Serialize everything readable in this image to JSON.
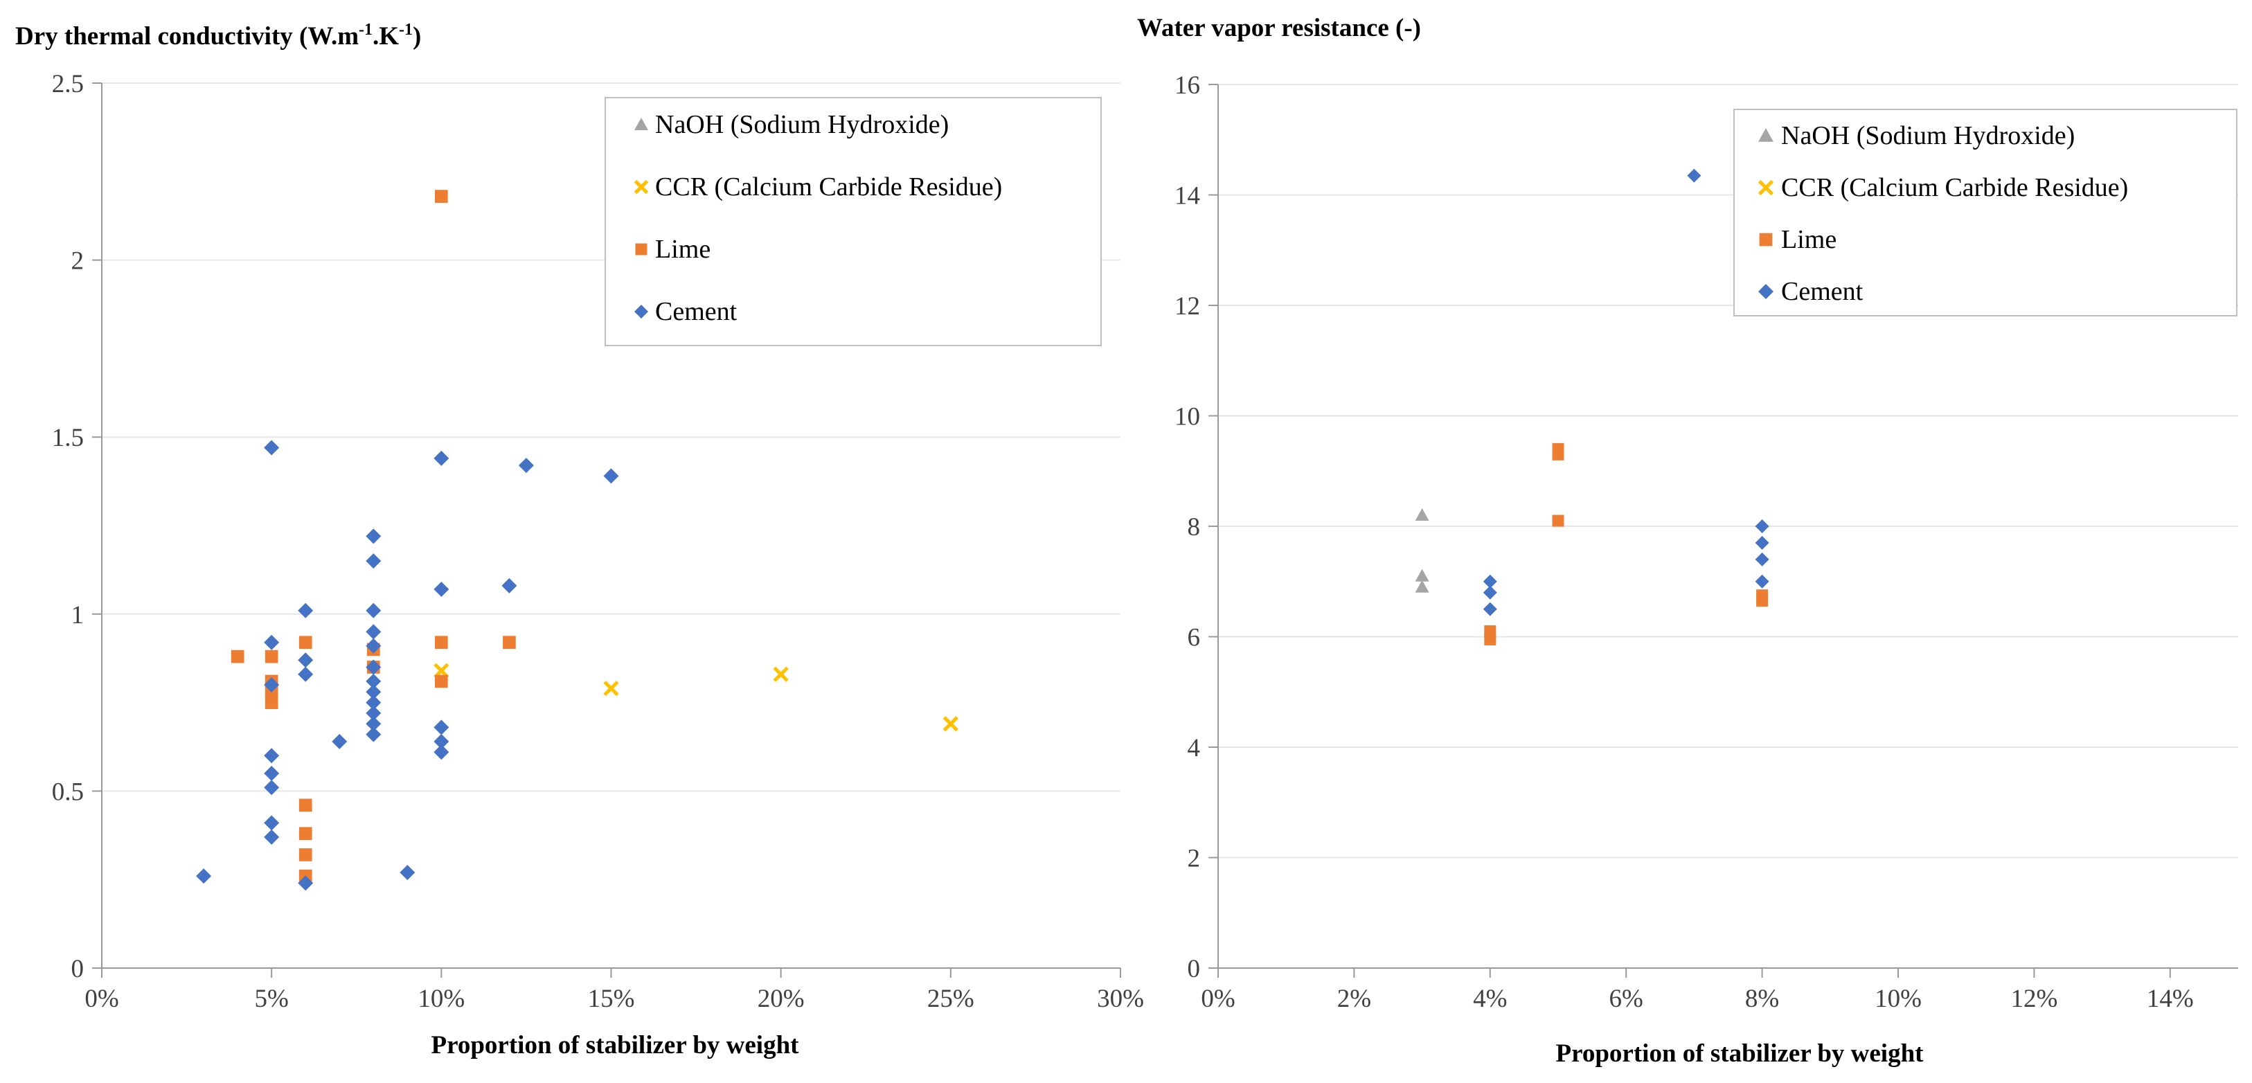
{
  "chart_data": [
    {
      "type": "scatter",
      "title": "",
      "ylabel": "Dry thermal conductivity (W.m-1.K-1)",
      "ylabel_parts": [
        "Dry thermal conductivity (W.m",
        "-1",
        ".K",
        "-1",
        ")"
      ],
      "xlabel": "Proportion of stabilizer by weight",
      "xlim": [
        0,
        0.3
      ],
      "xticks": [
        0,
        0.05,
        0.1,
        0.15,
        0.2,
        0.25,
        0.3
      ],
      "xtick_labels": [
        "0%",
        "5%",
        "10%",
        "15%",
        "20%",
        "25%",
        "30%"
      ],
      "ylim": [
        0,
        2.5
      ],
      "yticks": [
        0,
        0.5,
        1,
        1.5,
        2,
        2.5
      ],
      "ytick_labels": [
        "0",
        "0.5",
        "1",
        "1.5",
        "2",
        "2.5"
      ],
      "legend_position": "top-right",
      "series": [
        {
          "name": "NaOH (Sodium Hydroxide)",
          "marker": "triangle",
          "color": "#a5a5a5",
          "points": []
        },
        {
          "name": "CCR (Calcium Carbide Residue)",
          "marker": "x",
          "color": "#ffc000",
          "points": [
            [
              0.1,
              0.84
            ],
            [
              0.15,
              0.79
            ],
            [
              0.2,
              0.83
            ],
            [
              0.25,
              0.69
            ]
          ]
        },
        {
          "name": "Lime",
          "marker": "square",
          "color": "#ed7d31",
          "points": [
            [
              0.04,
              0.88
            ],
            [
              0.05,
              0.88
            ],
            [
              0.05,
              0.81
            ],
            [
              0.05,
              0.78
            ],
            [
              0.05,
              0.75
            ],
            [
              0.06,
              0.92
            ],
            [
              0.06,
              0.46
            ],
            [
              0.06,
              0.38
            ],
            [
              0.06,
              0.32
            ],
            [
              0.06,
              0.26
            ],
            [
              0.08,
              0.9
            ],
            [
              0.08,
              0.85
            ],
            [
              0.1,
              2.18
            ],
            [
              0.1,
              0.92
            ],
            [
              0.1,
              0.81
            ],
            [
              0.12,
              0.92
            ]
          ]
        },
        {
          "name": "Cement",
          "marker": "diamond",
          "color": "#4472c4",
          "points": [
            [
              0.03,
              0.26
            ],
            [
              0.05,
              1.47
            ],
            [
              0.05,
              0.92
            ],
            [
              0.05,
              0.8
            ],
            [
              0.05,
              0.6
            ],
            [
              0.05,
              0.55
            ],
            [
              0.05,
              0.51
            ],
            [
              0.05,
              0.41
            ],
            [
              0.05,
              0.37
            ],
            [
              0.06,
              1.01
            ],
            [
              0.06,
              0.87
            ],
            [
              0.06,
              0.83
            ],
            [
              0.06,
              0.24
            ],
            [
              0.07,
              0.64
            ],
            [
              0.08,
              1.22
            ],
            [
              0.08,
              1.15
            ],
            [
              0.08,
              1.01
            ],
            [
              0.08,
              0.95
            ],
            [
              0.08,
              0.91
            ],
            [
              0.08,
              0.85
            ],
            [
              0.08,
              0.81
            ],
            [
              0.08,
              0.78
            ],
            [
              0.08,
              0.75
            ],
            [
              0.08,
              0.72
            ],
            [
              0.08,
              0.69
            ],
            [
              0.08,
              0.66
            ],
            [
              0.09,
              0.27
            ],
            [
              0.1,
              1.44
            ],
            [
              0.1,
              1.07
            ],
            [
              0.1,
              0.68
            ],
            [
              0.1,
              0.64
            ],
            [
              0.1,
              0.61
            ],
            [
              0.12,
              1.08
            ],
            [
              0.125,
              1.42
            ],
            [
              0.15,
              1.39
            ]
          ]
        }
      ]
    },
    {
      "type": "scatter",
      "title": "",
      "ylabel": "Water vapor resistance (-)",
      "xlabel": "Proportion of stabilizer by weight",
      "xlim": [
        0,
        0.15
      ],
      "xticks": [
        0,
        0.02,
        0.04,
        0.06,
        0.08,
        0.1,
        0.12,
        0.14
      ],
      "xtick_labels": [
        "0%",
        "2%",
        "4%",
        "6%",
        "8%",
        "10%",
        "12%",
        "14%"
      ],
      "ylim": [
        0,
        16
      ],
      "yticks": [
        0,
        2,
        4,
        6,
        8,
        10,
        12,
        14,
        16
      ],
      "ytick_labels": [
        "0",
        "2",
        "4",
        "6",
        "8",
        "10",
        "12",
        "14",
        "16"
      ],
      "legend_position": "top-right",
      "series": [
        {
          "name": "NaOH (Sodium Hydroxide)",
          "marker": "triangle",
          "color": "#a5a5a5",
          "points": [
            [
              0.03,
              8.2
            ],
            [
              0.03,
              7.1
            ],
            [
              0.03,
              6.9
            ]
          ]
        },
        {
          "name": "CCR (Calcium Carbide Residue)",
          "marker": "x",
          "color": "#ffc000",
          "points": []
        },
        {
          "name": "Lime",
          "marker": "square",
          "color": "#ed7d31",
          "points": [
            [
              0.04,
              6.1
            ],
            [
              0.04,
              5.95
            ],
            [
              0.05,
              9.4
            ],
            [
              0.05,
              9.3
            ],
            [
              0.05,
              8.1
            ],
            [
              0.08,
              6.75
            ],
            [
              0.08,
              6.65
            ]
          ]
        },
        {
          "name": "Cement",
          "marker": "diamond",
          "color": "#4472c4",
          "points": [
            [
              0.04,
              7.0
            ],
            [
              0.04,
              6.8
            ],
            [
              0.04,
              6.5
            ],
            [
              0.07,
              14.35
            ],
            [
              0.08,
              8.0
            ],
            [
              0.08,
              7.7
            ],
            [
              0.08,
              7.4
            ],
            [
              0.08,
              7.0
            ]
          ]
        }
      ]
    }
  ]
}
